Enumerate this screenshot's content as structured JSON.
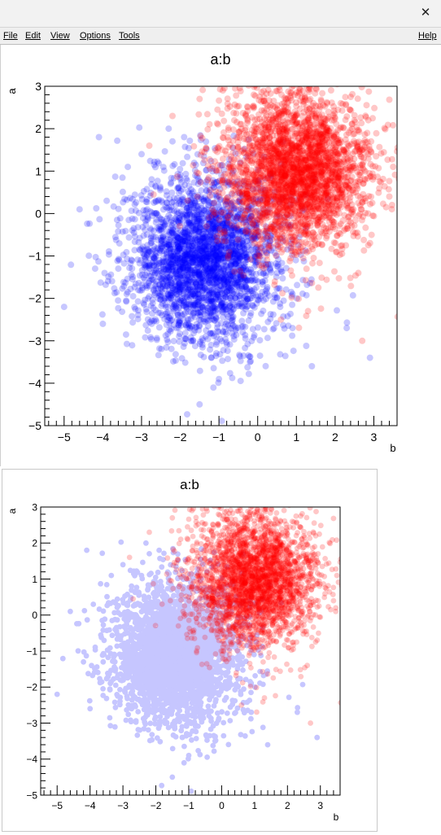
{
  "window": {
    "close_glyph": "✕"
  },
  "menu": {
    "file": "File",
    "edit": "Edit",
    "view": "View",
    "options": "Options",
    "tools": "Tools",
    "help": "Help"
  },
  "colors": {
    "red": "#ff0000",
    "blue": "#0000ff",
    "lavender": "#c6c6ff"
  },
  "chart_data": [
    {
      "type": "scatter",
      "title": "a:b",
      "xlabel": "b",
      "ylabel": "a",
      "xlim": [
        -5.5,
        3.6
      ],
      "ylim": [
        -5,
        3
      ],
      "xticks": [
        -5,
        -4,
        -3,
        -2,
        -1,
        0,
        1,
        2,
        3
      ],
      "yticks": [
        -5,
        -4,
        -3,
        -2,
        -1,
        0,
        1,
        2,
        3
      ],
      "series": [
        {
          "color": "#0000ff",
          "opacity": 0.22,
          "distribution": {
            "mean_x": -1.4,
            "mean_y": -1.1,
            "sd_x": 0.95,
            "sd_y": 0.95,
            "n": 2800,
            "points": [
              [
                -4.6,
                0.1
              ],
              [
                -4.1,
                1.8
              ],
              [
                -3.9,
                0.3
              ],
              [
                -4.2,
                -1.3
              ],
              [
                -3.6,
                -1.3
              ],
              [
                -4.0,
                -2.6
              ],
              [
                -5.0,
                -2.2
              ],
              [
                -1.5,
                -4.5
              ],
              [
                -1.0,
                -3.9
              ],
              [
                -0.2,
                -3.5
              ],
              [
                1.4,
                -3.6
              ],
              [
                2.9,
                -3.4
              ],
              [
                2.3,
                -2.7
              ],
              [
                0.9,
                -2.7
              ],
              [
                -3.0,
                1.4
              ],
              [
                -2.3,
                2.0
              ],
              [
                -1.9,
                1.8
              ]
            ]
          }
        },
        {
          "color": "#ff0000",
          "opacity": 0.22,
          "distribution": {
            "mean_x": 1.0,
            "mean_y": 1.0,
            "sd_x": 0.95,
            "sd_y": 0.95,
            "n": 2800,
            "points": [
              [
                3.4,
                0.4
              ],
              [
                3.5,
                1.1
              ],
              [
                2.5,
                2.2
              ],
              [
                -0.1,
                2.8
              ],
              [
                -1.5,
                2.7
              ],
              [
                -2.2,
                2.3
              ],
              [
                -2.8,
                1.6
              ],
              [
                2.6,
                -1.4
              ],
              [
                2.7,
                -3.0
              ],
              [
                1.3,
                -2.3
              ],
              [
                0.6,
                -2.5
              ],
              [
                -0.9,
                2.9
              ]
            ]
          }
        }
      ]
    },
    {
      "type": "scatter",
      "title": "a:b",
      "xlabel": "b",
      "ylabel": "a",
      "xlim": [
        -5.5,
        3.6
      ],
      "ylim": [
        -5,
        3
      ],
      "xticks": [
        -5,
        -4,
        -3,
        -2,
        -1,
        0,
        1,
        2,
        3
      ],
      "yticks": [
        -5,
        -4,
        -3,
        -2,
        -1,
        0,
        1,
        2,
        3
      ],
      "series": [
        {
          "color": "#c6c6ff",
          "opacity": 1.0,
          "distribution": {
            "mean_x": -1.4,
            "mean_y": -1.1,
            "sd_x": 0.95,
            "sd_y": 0.95,
            "n": 2800,
            "points": [
              [
                -4.6,
                0.1
              ],
              [
                -4.1,
                1.8
              ],
              [
                -3.9,
                0.3
              ],
              [
                -4.2,
                -1.3
              ],
              [
                -3.6,
                -1.3
              ],
              [
                -4.0,
                -2.6
              ],
              [
                -5.0,
                -2.2
              ],
              [
                -1.5,
                -4.5
              ],
              [
                -1.0,
                -3.9
              ],
              [
                -0.2,
                -3.5
              ],
              [
                1.4,
                -3.6
              ],
              [
                2.9,
                -3.4
              ],
              [
                2.3,
                -2.7
              ],
              [
                0.9,
                -2.7
              ],
              [
                -3.0,
                1.4
              ],
              [
                -2.3,
                2.0
              ],
              [
                -1.9,
                1.8
              ]
            ]
          }
        },
        {
          "color": "#ff0000",
          "opacity": 0.22,
          "distribution": {
            "mean_x": 1.0,
            "mean_y": 1.0,
            "sd_x": 0.95,
            "sd_y": 0.95,
            "n": 2800,
            "points": [
              [
                3.4,
                0.4
              ],
              [
                3.5,
                1.1
              ],
              [
                2.5,
                2.2
              ],
              [
                -0.1,
                2.8
              ],
              [
                -1.5,
                2.7
              ],
              [
                -2.2,
                2.3
              ],
              [
                -2.8,
                1.6
              ],
              [
                2.6,
                -1.4
              ],
              [
                2.7,
                -3.0
              ],
              [
                1.3,
                -2.3
              ],
              [
                0.6,
                -2.5
              ],
              [
                -0.9,
                2.9
              ]
            ]
          }
        }
      ]
    }
  ]
}
